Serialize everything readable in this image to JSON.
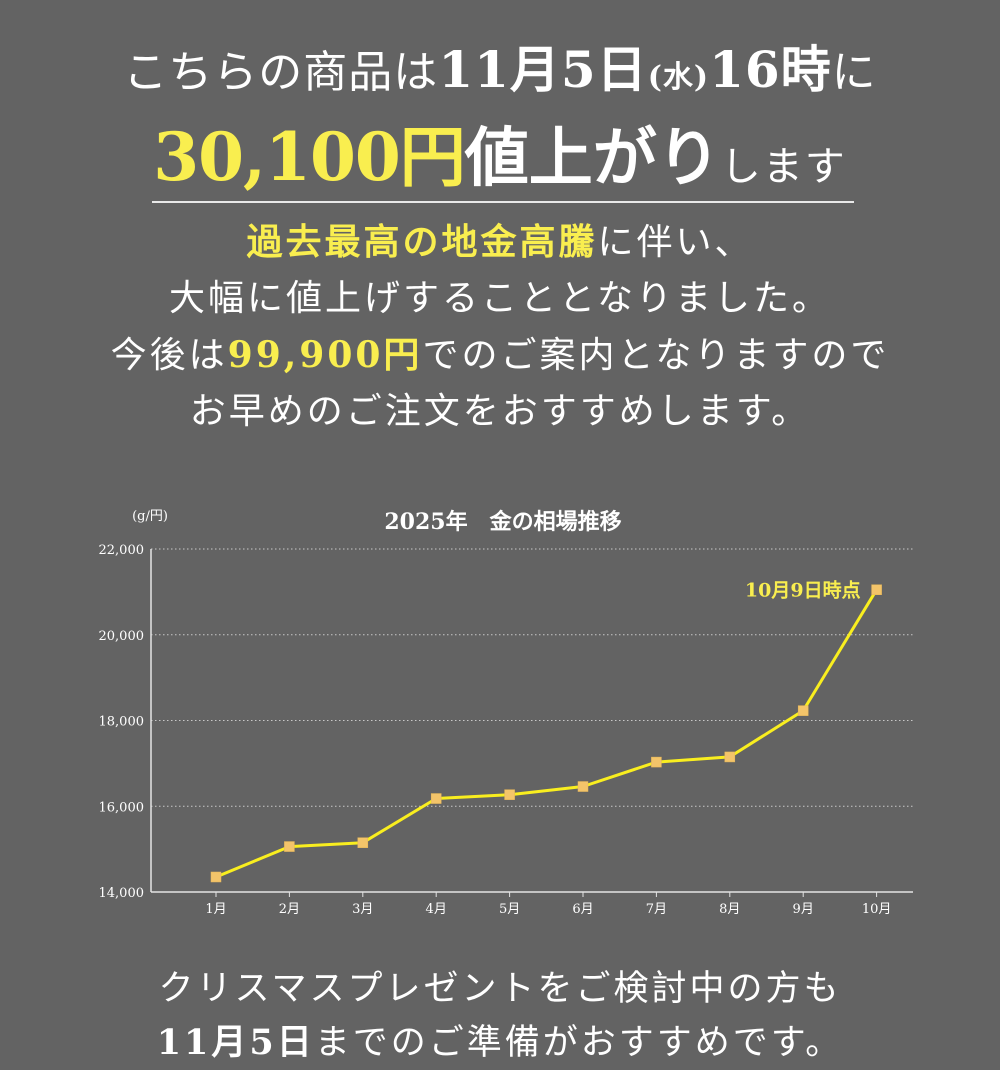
{
  "headline": {
    "line1_prefix": "こちらの商品は",
    "line1_date": "11月5日",
    "line1_weekday": "(水)",
    "line1_time": "16時",
    "line1_suffix": "に",
    "line2_price": "30,100円",
    "line2_rise": "値上がり",
    "line2_suffix": "します"
  },
  "notice": {
    "line1_highlight": "過去最高の地金高騰",
    "line1_rest": "に伴い、",
    "line2": "大幅に値上げすることとなりました。",
    "line3_prefix": "今後は",
    "line3_price": "99,900円",
    "line3_rest": "でのご案内となりますので",
    "line4": "お早めのご注文をおすすめします。"
  },
  "footer": {
    "line1": "クリスマスプレゼントをご検討中の方も",
    "line2_date": "11月5日",
    "line2_rest": "までのご準備がおすすめです。"
  },
  "colors": {
    "background": "#636363",
    "highlight": "#f9ee4f",
    "line": "#f9ee1f",
    "marker": "#f3c46a"
  },
  "chart_data": {
    "type": "line",
    "title": "2025年　金の相場推移",
    "ylabel": "(g/円)",
    "xlabel": "",
    "categories": [
      "1月",
      "2月",
      "3月",
      "4月",
      "5月",
      "6月",
      "7月",
      "8月",
      "9月",
      "10月"
    ],
    "series": [
      {
        "values": [
          14350,
          15060,
          15150,
          16180,
          16270,
          16460,
          17030,
          17150,
          18230,
          21050
        ]
      }
    ],
    "ylim": [
      14000,
      22000
    ],
    "yticks": [
      14000,
      16000,
      18000,
      20000,
      22000
    ],
    "ytick_labels": [
      "14,000",
      "16,000",
      "18,000",
      "20,000",
      "22,000"
    ],
    "grid": true,
    "annotation": {
      "text": "10月9日時点",
      "category": "10月"
    }
  }
}
